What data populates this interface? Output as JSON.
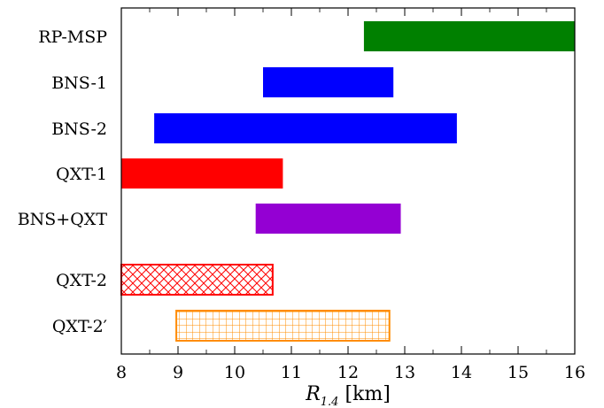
{
  "chart_data": {
    "type": "bar",
    "orientation": "horizontal-range",
    "xlabel_main": "R",
    "xlabel_sub": "1.4",
    "xlabel_unit": " [km]",
    "xlim": [
      8,
      16
    ],
    "x_ticks": [
      "8",
      "9",
      "10",
      "11",
      "12",
      "13",
      "14",
      "15",
      "16"
    ],
    "grid": false,
    "categories": [
      "RP-MSP",
      "BNS-1",
      "BNS-2",
      "QXT-1",
      "BNS+QXT",
      "QXT-2",
      "QXT-2′"
    ],
    "ranges": [
      {
        "low": 12.28,
        "high": 16.0,
        "color": "#008000",
        "fill": "solid"
      },
      {
        "low": 10.5,
        "high": 12.8,
        "color": "#0000ff",
        "fill": "solid"
      },
      {
        "low": 8.58,
        "high": 13.92,
        "color": "#0000ff",
        "fill": "solid"
      },
      {
        "low": 8.0,
        "high": 10.85,
        "color": "#ff0000",
        "fill": "solid"
      },
      {
        "low": 10.37,
        "high": 12.93,
        "color": "#9400d3",
        "fill": "solid"
      },
      {
        "low": 8.0,
        "high": 10.67,
        "color": "#ff0000",
        "fill": "crosshatch"
      },
      {
        "low": 8.97,
        "high": 12.73,
        "color": "#ff8c00",
        "fill": "grid"
      }
    ]
  }
}
